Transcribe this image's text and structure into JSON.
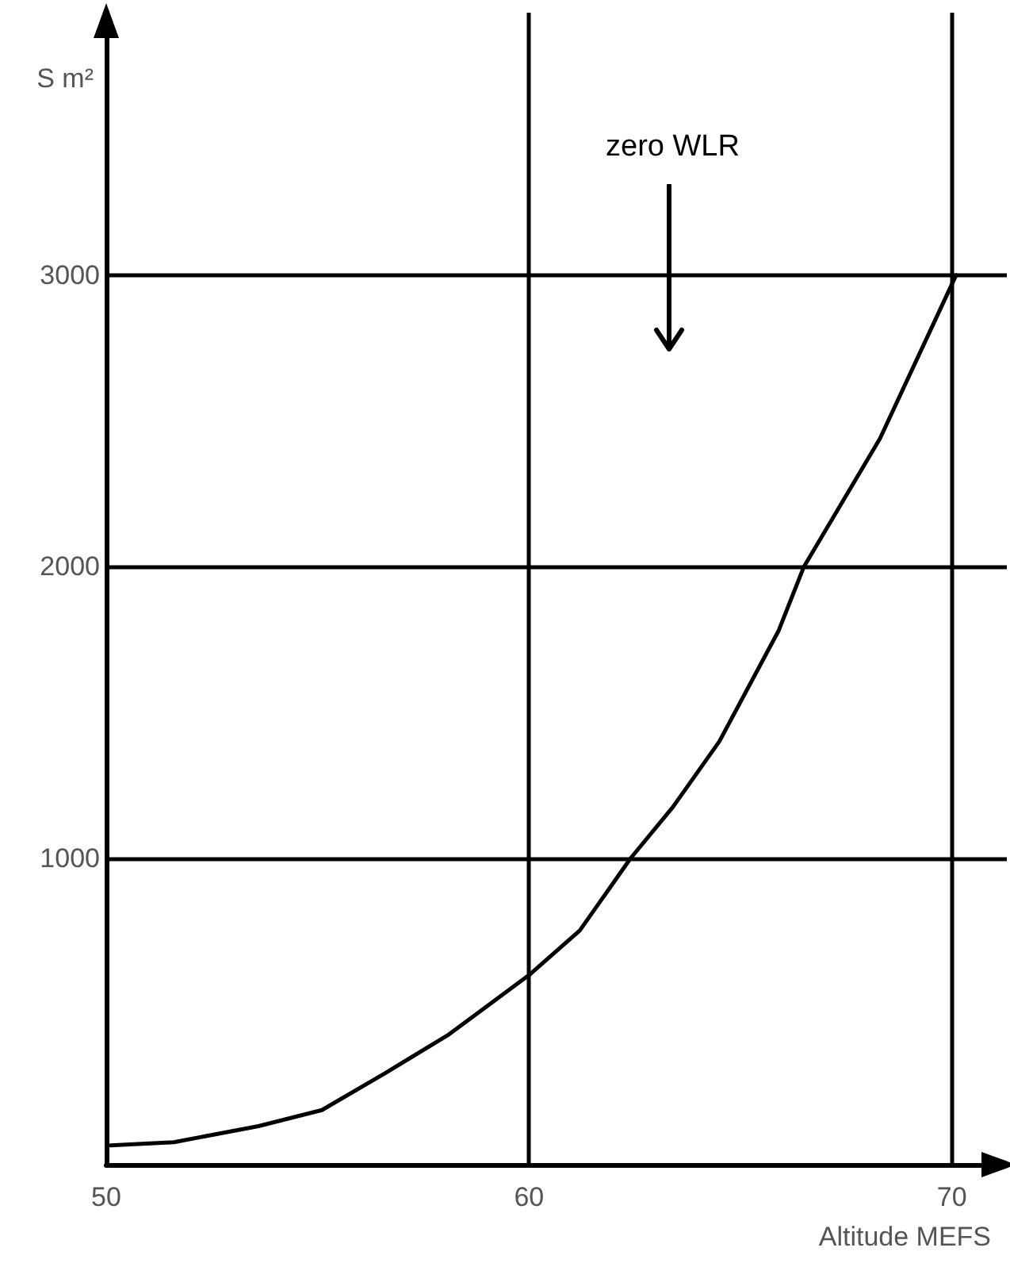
{
  "chart_data": {
    "type": "line",
    "xlabel": "Altitude MEFS",
    "ylabel": "S m²",
    "x": [
      50.1,
      51.6,
      53.6,
      55.1,
      56.6,
      58.1,
      60,
      61.2,
      62.4,
      63.4,
      64.5,
      65.9,
      66.5,
      68.3,
      70.1
    ],
    "series": [
      {
        "color": "#000000",
        "values": [
          16,
          27,
          82,
          137,
          264,
          396,
          600,
          753,
          1000,
          1176,
          1401,
          1780,
          2000,
          2440,
          3000
        ]
      }
    ],
    "xlim": [
      50,
      71.3
    ],
    "xticks": [
      50,
      60,
      70
    ],
    "ylim": [
      -50,
      3900
    ],
    "yticks": [
      1000,
      2000,
      3000
    ],
    "annotations": [
      "zero WLR"
    ],
    "grid": true,
    "marker": "none",
    "line_style": "solid"
  }
}
